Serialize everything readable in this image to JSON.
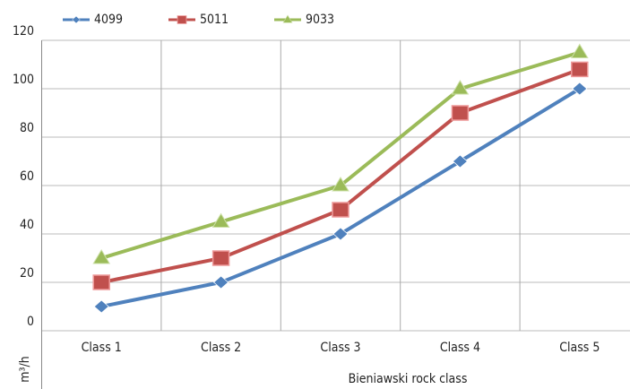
{
  "chart_data": {
    "type": "line",
    "categories": [
      "Class 1",
      "Class 2",
      "Class 3",
      "Class 4",
      "Class 5"
    ],
    "series": [
      {
        "name": "4099",
        "color": "#4f81bd",
        "marker": "diamond",
        "values": [
          10,
          20,
          40,
          70,
          100
        ]
      },
      {
        "name": "5011",
        "color": "#c0504d",
        "marker": "square",
        "values": [
          20,
          30,
          50,
          90,
          108
        ]
      },
      {
        "name": "9033",
        "color": "#9bbb59",
        "marker": "triangle",
        "values": [
          30,
          45,
          60,
          100,
          115
        ]
      }
    ],
    "ylim": [
      0,
      120
    ],
    "yticks": [
      0,
      20,
      40,
      60,
      80,
      100,
      120
    ],
    "y_label": "m³/h",
    "x_label": "Bieniawski rock class",
    "grid": true,
    "legend": "top"
  }
}
